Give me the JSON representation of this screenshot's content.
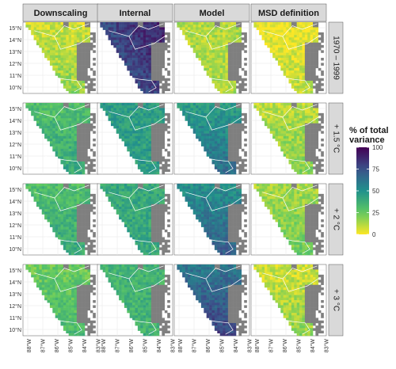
{
  "chart_data": {
    "type": "heatmap",
    "columns": [
      "Downscaling",
      "Internal",
      "Model",
      "MSD definition"
    ],
    "rows": [
      "1970 – 1999",
      "+ 1.5 °C",
      "+ 2 °C",
      "+ 3 °C"
    ],
    "y_ticks": [
      "15°N",
      "14°N",
      "13°N",
      "12°N",
      "11°N",
      "10°N"
    ],
    "x_ticks": [
      "88°W",
      "87°W",
      "86°W",
      "85°W",
      "84°W",
      "83°W"
    ],
    "legend": {
      "title": [
        "% of total",
        "variance"
      ],
      "ticks": [
        100,
        75,
        50,
        25,
        0
      ],
      "range": [
        0,
        100
      ]
    },
    "approx_mean_percent_of_total_variance": [
      [
        12,
        85,
        12,
        6
      ],
      [
        35,
        45,
        55,
        15
      ],
      [
        35,
        40,
        60,
        18
      ],
      [
        28,
        35,
        70,
        12
      ]
    ],
    "colors": {
      "strip_bg": "#d9d9d9",
      "panel_bg": "#ffffff",
      "grid": "#e6e6e6",
      "land_gray": "#7f7f7f",
      "border_line": "#ffffff",
      "viridis": [
        "#fde725",
        "#5ec962",
        "#21918c",
        "#3b528b",
        "#440154"
      ]
    }
  }
}
